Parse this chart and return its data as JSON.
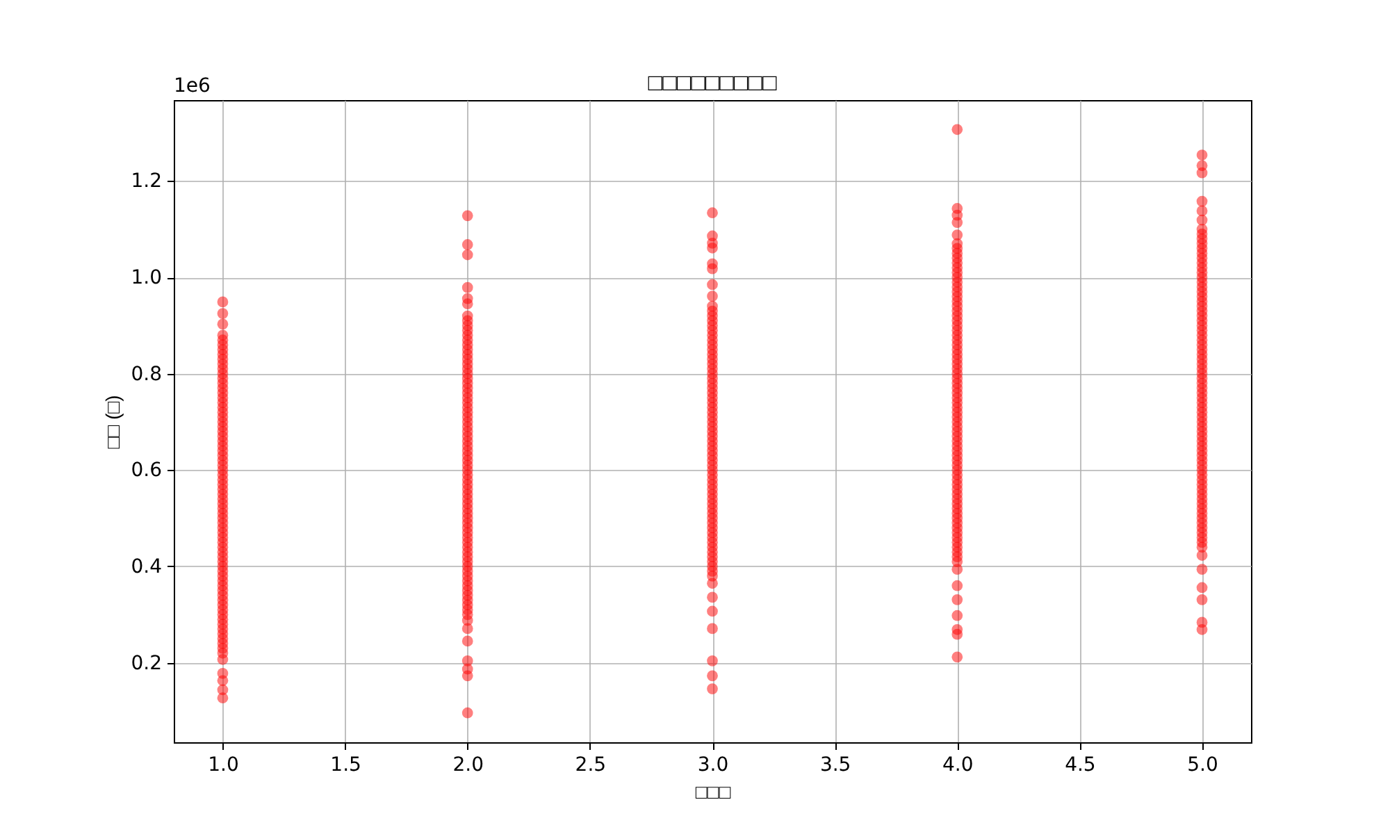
{
  "chart_data": {
    "type": "scatter",
    "title": "□□□□□□□□□",
    "xlabel": "□□□",
    "ylabel": "□□ (□)",
    "annotations": [
      "1e6"
    ],
    "series": [
      {
        "color": "#ff0000",
        "x": [
          1,
          1,
          1,
          1,
          1,
          1,
          1,
          1,
          1,
          1,
          1,
          1,
          1,
          1,
          1,
          1,
          1,
          1,
          1,
          1,
          1,
          1,
          1,
          1,
          1,
          1,
          1,
          1,
          1,
          1,
          1,
          1,
          1,
          1,
          1,
          1,
          1,
          1,
          1,
          1,
          1,
          1,
          1,
          1,
          1,
          1,
          1,
          1,
          1,
          1,
          1,
          1,
          1,
          1,
          1,
          1,
          1,
          1,
          1,
          1,
          1,
          1,
          1,
          1,
          1,
          1,
          1,
          1,
          1,
          1,
          1,
          1,
          1,
          1,
          1,
          2,
          2,
          2,
          2,
          2,
          2,
          2,
          2,
          2,
          2,
          2,
          2,
          2,
          2,
          2,
          2,
          2,
          2,
          2,
          2,
          2,
          2,
          2,
          2,
          2,
          2,
          2,
          2,
          2,
          2,
          2,
          2,
          2,
          2,
          2,
          2,
          2,
          2,
          2,
          2,
          2,
          2,
          2,
          2,
          2,
          2,
          2,
          2,
          2,
          2,
          2,
          2,
          2,
          2,
          2,
          2,
          2,
          2,
          2,
          2,
          2,
          2,
          2,
          2,
          2,
          2,
          2,
          2,
          2,
          2,
          2,
          2,
          2,
          2,
          2,
          2,
          3,
          3,
          3,
          3,
          3,
          3,
          3,
          3,
          3,
          3,
          3,
          3,
          3,
          3,
          3,
          3,
          3,
          3,
          3,
          3,
          3,
          3,
          3,
          3,
          3,
          3,
          3,
          3,
          3,
          3,
          3,
          3,
          3,
          3,
          3,
          3,
          3,
          3,
          3,
          3,
          3,
          3,
          3,
          3,
          3,
          3,
          3,
          3,
          3,
          3,
          3,
          3,
          3,
          3,
          3,
          3,
          3,
          3,
          3,
          3,
          3,
          3,
          3,
          3,
          3,
          3,
          3,
          3,
          3,
          3,
          3,
          3,
          4,
          4,
          4,
          4,
          4,
          4,
          4,
          4,
          4,
          4,
          4,
          4,
          4,
          4,
          4,
          4,
          4,
          4,
          4,
          4,
          4,
          4,
          4,
          4,
          4,
          4,
          4,
          4,
          4,
          4,
          4,
          4,
          4,
          4,
          4,
          4,
          4,
          4,
          4,
          4,
          4,
          4,
          4,
          4,
          4,
          4,
          4,
          4,
          4,
          4,
          4,
          4,
          4,
          4,
          4,
          4,
          4,
          4,
          4,
          4,
          4,
          4,
          4,
          4,
          4,
          4,
          4,
          4,
          4,
          4,
          4,
          4,
          4,
          4,
          4,
          4,
          4,
          4,
          4,
          5,
          5,
          5,
          5,
          5,
          5,
          5,
          5,
          5,
          5,
          5,
          5,
          5,
          5,
          5,
          5,
          5,
          5,
          5,
          5,
          5,
          5,
          5,
          5,
          5,
          5,
          5,
          5,
          5,
          5,
          5,
          5,
          5,
          5,
          5,
          5,
          5,
          5,
          5,
          5,
          5,
          5,
          5,
          5,
          5,
          5,
          5,
          5,
          5,
          5,
          5,
          5,
          5,
          5,
          5,
          5,
          5,
          5,
          5,
          5,
          5,
          5,
          5,
          5,
          5,
          5,
          5,
          5,
          5,
          5,
          5,
          5,
          5,
          5,
          5,
          5,
          5,
          5,
          5
        ],
        "values": [
          0.949,
          0.925,
          0.903,
          0.88,
          0.87,
          0.86,
          0.85,
          0.84,
          0.83,
          0.82,
          0.81,
          0.8,
          0.79,
          0.78,
          0.77,
          0.76,
          0.75,
          0.74,
          0.73,
          0.72,
          0.71,
          0.7,
          0.69,
          0.68,
          0.67,
          0.66,
          0.65,
          0.64,
          0.63,
          0.62,
          0.61,
          0.6,
          0.59,
          0.58,
          0.57,
          0.56,
          0.55,
          0.54,
          0.53,
          0.52,
          0.51,
          0.5,
          0.49,
          0.48,
          0.47,
          0.46,
          0.45,
          0.44,
          0.43,
          0.42,
          0.41,
          0.4,
          0.39,
          0.38,
          0.37,
          0.36,
          0.35,
          0.34,
          0.33,
          0.32,
          0.31,
          0.3,
          0.29,
          0.28,
          0.27,
          0.26,
          0.25,
          0.24,
          0.23,
          0.22,
          0.207,
          0.178,
          0.163,
          0.144,
          0.127,
          1.128,
          1.068,
          1.047,
          0.979,
          0.956,
          0.945,
          0.92,
          0.91,
          0.9,
          0.89,
          0.88,
          0.87,
          0.86,
          0.85,
          0.84,
          0.83,
          0.82,
          0.81,
          0.8,
          0.79,
          0.78,
          0.77,
          0.76,
          0.75,
          0.74,
          0.73,
          0.72,
          0.71,
          0.7,
          0.69,
          0.68,
          0.67,
          0.66,
          0.65,
          0.64,
          0.63,
          0.62,
          0.61,
          0.6,
          0.59,
          0.58,
          0.57,
          0.56,
          0.55,
          0.54,
          0.53,
          0.52,
          0.51,
          0.5,
          0.49,
          0.48,
          0.47,
          0.46,
          0.45,
          0.44,
          0.43,
          0.42,
          0.41,
          0.4,
          0.39,
          0.38,
          0.37,
          0.36,
          0.35,
          0.34,
          0.33,
          0.32,
          0.31,
          0.3,
          0.288,
          0.271,
          0.245,
          0.204,
          0.187,
          0.173,
          0.096,
          1.134,
          1.086,
          1.071,
          1.061,
          1.028,
          1.018,
          0.985,
          0.961,
          0.94,
          0.93,
          0.92,
          0.91,
          0.9,
          0.89,
          0.88,
          0.87,
          0.86,
          0.85,
          0.84,
          0.83,
          0.82,
          0.81,
          0.8,
          0.79,
          0.78,
          0.77,
          0.76,
          0.75,
          0.74,
          0.73,
          0.72,
          0.71,
          0.7,
          0.69,
          0.68,
          0.67,
          0.66,
          0.65,
          0.64,
          0.63,
          0.62,
          0.61,
          0.6,
          0.59,
          0.58,
          0.57,
          0.56,
          0.55,
          0.54,
          0.53,
          0.52,
          0.51,
          0.5,
          0.49,
          0.48,
          0.47,
          0.46,
          0.45,
          0.44,
          0.43,
          0.42,
          0.41,
          0.4,
          0.39,
          0.38,
          0.365,
          0.336,
          0.307,
          0.271,
          0.204,
          0.173,
          0.146,
          1.307,
          1.143,
          1.129,
          1.114,
          1.088,
          1.07,
          1.06,
          1.05,
          1.04,
          1.03,
          1.02,
          1.01,
          1.0,
          0.99,
          0.98,
          0.97,
          0.96,
          0.95,
          0.94,
          0.93,
          0.92,
          0.91,
          0.9,
          0.89,
          0.88,
          0.87,
          0.86,
          0.85,
          0.84,
          0.83,
          0.82,
          0.81,
          0.8,
          0.79,
          0.78,
          0.77,
          0.76,
          0.75,
          0.74,
          0.73,
          0.72,
          0.71,
          0.7,
          0.69,
          0.68,
          0.67,
          0.66,
          0.65,
          0.64,
          0.63,
          0.62,
          0.61,
          0.6,
          0.59,
          0.58,
          0.57,
          0.56,
          0.55,
          0.54,
          0.53,
          0.52,
          0.51,
          0.5,
          0.49,
          0.48,
          0.47,
          0.46,
          0.45,
          0.44,
          0.43,
          0.42,
          0.41,
          0.394,
          0.36,
          0.331,
          0.298,
          0.269,
          0.259,
          0.212,
          1.254,
          1.232,
          1.217,
          1.158,
          1.138,
          1.119,
          1.1,
          1.09,
          1.08,
          1.07,
          1.06,
          1.05,
          1.04,
          1.03,
          1.02,
          1.01,
          1.0,
          0.99,
          0.98,
          0.97,
          0.96,
          0.95,
          0.94,
          0.93,
          0.92,
          0.91,
          0.9,
          0.89,
          0.88,
          0.87,
          0.86,
          0.85,
          0.84,
          0.83,
          0.82,
          0.81,
          0.8,
          0.79,
          0.78,
          0.77,
          0.76,
          0.75,
          0.74,
          0.73,
          0.72,
          0.71,
          0.7,
          0.69,
          0.68,
          0.67,
          0.66,
          0.65,
          0.64,
          0.63,
          0.62,
          0.61,
          0.6,
          0.59,
          0.58,
          0.57,
          0.56,
          0.55,
          0.54,
          0.53,
          0.52,
          0.51,
          0.5,
          0.49,
          0.48,
          0.47,
          0.46,
          0.45,
          0.44,
          0.423,
          0.394,
          0.356,
          0.331,
          0.284,
          0.269
        ]
      }
    ],
    "xlim": [
      0.8,
      5.2
    ],
    "ylim": [
      0.035,
      1.368
    ],
    "xticks": [
      {
        "value": 1,
        "label": "1.0"
      },
      1.5,
      {
        "value": 2,
        "label": "2.0"
      },
      2.5,
      {
        "value": 3,
        "label": "3.0"
      },
      3.5,
      {
        "value": 4,
        "label": "4.0"
      },
      4.5,
      {
        "value": 5,
        "label": "5.0"
      }
    ],
    "yticks": [
      0.2,
      0.4,
      0.6,
      0.8,
      {
        "value": 1,
        "label": "1.0"
      },
      1.2
    ],
    "grid": true,
    "marker": "circle"
  }
}
